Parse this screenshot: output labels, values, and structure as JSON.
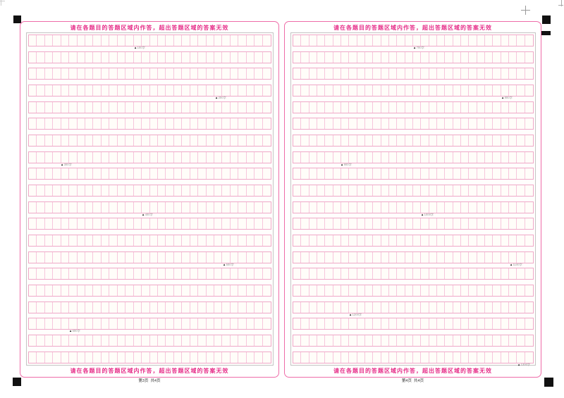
{
  "notice": "请在各题目的答题区域内作答，超出答题区域的答案无效",
  "marker_symbol": "▲",
  "grid": {
    "rows": 20,
    "cols": 30,
    "cells_per_page": 600
  },
  "colors": {
    "paper": "#ffffff",
    "panel_border": "#ee6ca8",
    "notice_text": "#e6308a",
    "inner_border": "#c4c4c4",
    "row_border": "#efa8c8",
    "cell_border": "#f7c6dc",
    "mark": "#111111"
  },
  "registration_marks": [
    "top-left-square",
    "top-right-square",
    "top-right-bar",
    "bottom-left-square",
    "bottom-right-square",
    "crosshair",
    "edge-crosshair"
  ],
  "panels": [
    {
      "name": "page-3",
      "page_label": "第3页  共4页",
      "markers": [
        {
          "row": 1,
          "col": 14,
          "label": "100字"
        },
        {
          "row": 4,
          "col": 24,
          "label": "200字"
        },
        {
          "row": 8,
          "col": 5,
          "label": "300字"
        },
        {
          "row": 11,
          "col": 15,
          "label": "400字"
        },
        {
          "row": 14,
          "col": 25,
          "label": "500字"
        },
        {
          "row": 18,
          "col": 6,
          "label": "600字"
        }
      ]
    },
    {
      "name": "page-4",
      "page_label": "第4页  共4页",
      "markers": [
        {
          "row": 1,
          "col": 16,
          "label": "700字"
        },
        {
          "row": 4,
          "col": 27,
          "label": "800字"
        },
        {
          "row": 8,
          "col": 7,
          "label": "900字"
        },
        {
          "row": 11,
          "col": 17,
          "label": "1000字"
        },
        {
          "row": 14,
          "col": 28,
          "label": "1100字"
        },
        {
          "row": 17,
          "col": 8,
          "label": "1200字"
        },
        {
          "row": 20,
          "col": 29,
          "label": "1300字"
        }
      ]
    }
  ]
}
